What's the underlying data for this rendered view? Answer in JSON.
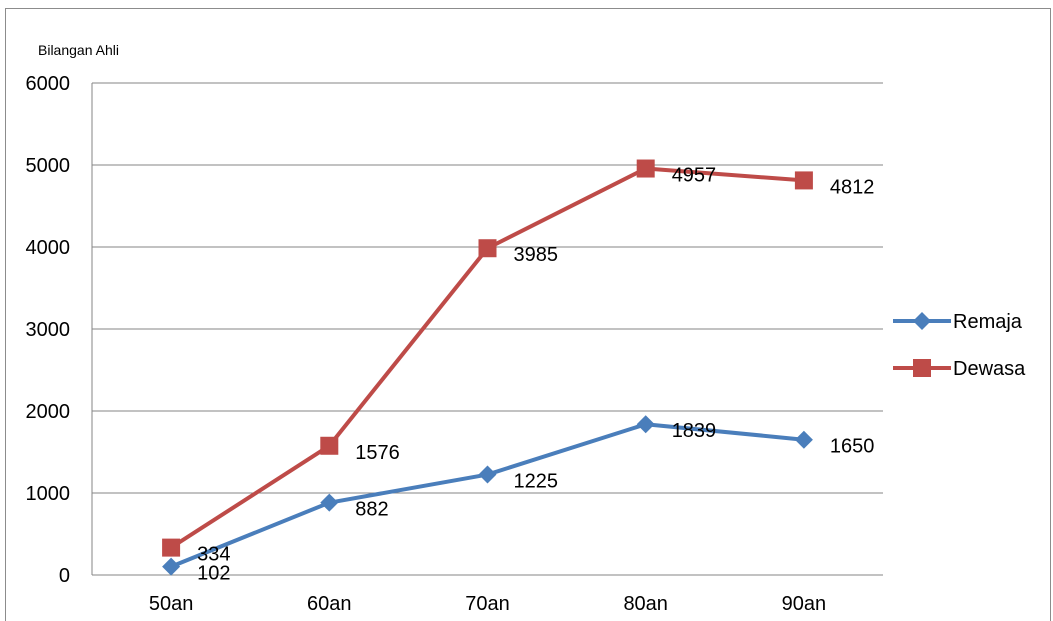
{
  "chart_data": {
    "type": "line",
    "title": "",
    "ylabel": "Bilangan Ahli",
    "xlabel": "",
    "categories": [
      "50an",
      "60an",
      "70an",
      "80an",
      "90an"
    ],
    "ylim": [
      0,
      6000
    ],
    "yticks": [
      0,
      1000,
      2000,
      3000,
      4000,
      5000,
      6000
    ],
    "grid": true,
    "legend_position": "right",
    "series": [
      {
        "name": "Remaja",
        "values": [
          102,
          882,
          1225,
          1839,
          1650
        ],
        "color": "#4a7ebb",
        "marker": "diamond"
      },
      {
        "name": "Dewasa",
        "values": [
          334,
          1576,
          3985,
          4957,
          4812
        ],
        "color": "#be4b48",
        "marker": "square"
      }
    ]
  },
  "colors": {
    "grid": "#868686",
    "axis": "#868686",
    "frame": "#8c8c8c"
  }
}
